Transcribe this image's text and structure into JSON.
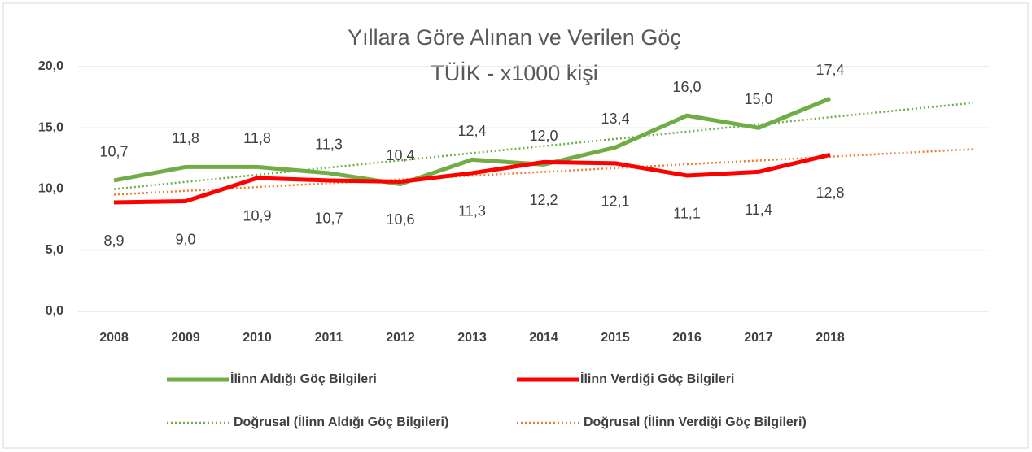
{
  "chart_data": {
    "type": "line",
    "title": "Yıllara Göre Alınan ve Verilen Göç",
    "subtitle": "TÜİK - x1000 kişi",
    "categories": [
      "2008",
      "2009",
      "2010",
      "2011",
      "2012",
      "2013",
      "2014",
      "2015",
      "2016",
      "2017",
      "2018",
      null,
      null
    ],
    "series": [
      {
        "name": "İlinn Aldığı Göç Bilgileri",
        "color": "#70ad47",
        "line_style": "solid",
        "values": [
          10.7,
          11.8,
          11.8,
          11.3,
          10.4,
          12.4,
          12.0,
          13.4,
          16.0,
          15.0,
          17.4,
          null,
          null
        ],
        "value_labels": [
          "10,7",
          "11,8",
          "11,8",
          "11,3",
          "10,4",
          "12,4",
          "12,0",
          "13,4",
          "16,0",
          "15,0",
          "17,4",
          null,
          null
        ]
      },
      {
        "name": "İlinn Verdiği Göç Bilgileri",
        "color": "#ff0000",
        "line_style": "solid",
        "values": [
          8.9,
          9.0,
          10.9,
          10.7,
          10.6,
          11.3,
          12.2,
          12.1,
          11.1,
          11.4,
          12.8,
          null,
          null
        ],
        "value_labels": [
          "8,9",
          "9,0",
          "10,9",
          "10,7",
          "10,6",
          "11,3",
          "12,2",
          "12,1",
          "11,1",
          "11,4",
          "12,8",
          null,
          null
        ]
      },
      {
        "name": "Doğrusal (İlinn Aldığı Göç Bilgileri)",
        "color": "#70ad47",
        "line_style": "dotted",
        "values": [
          9.99,
          10.58,
          11.16,
          11.75,
          12.34,
          12.93,
          13.51,
          14.1,
          14.69,
          15.28,
          15.87,
          16.46,
          17.04
        ]
      },
      {
        "name": "Doğrusal (İlinn Verdiği Göç Bilgileri)",
        "color": "#ed7d31",
        "line_style": "dotted",
        "values": [
          9.54,
          9.85,
          10.16,
          10.47,
          10.78,
          11.09,
          11.4,
          11.71,
          12.02,
          12.33,
          12.64,
          12.95,
          13.26
        ]
      }
    ],
    "ylim": [
      0,
      20
    ],
    "yticks": [
      {
        "value": 0,
        "label": "0,0"
      },
      {
        "value": 5,
        "label": "5,0"
      },
      {
        "value": 10,
        "label": "10,0"
      },
      {
        "value": 15,
        "label": "15,0"
      },
      {
        "value": 20,
        "label": "20,0"
      }
    ],
    "grid": true,
    "legend": "bottom"
  }
}
